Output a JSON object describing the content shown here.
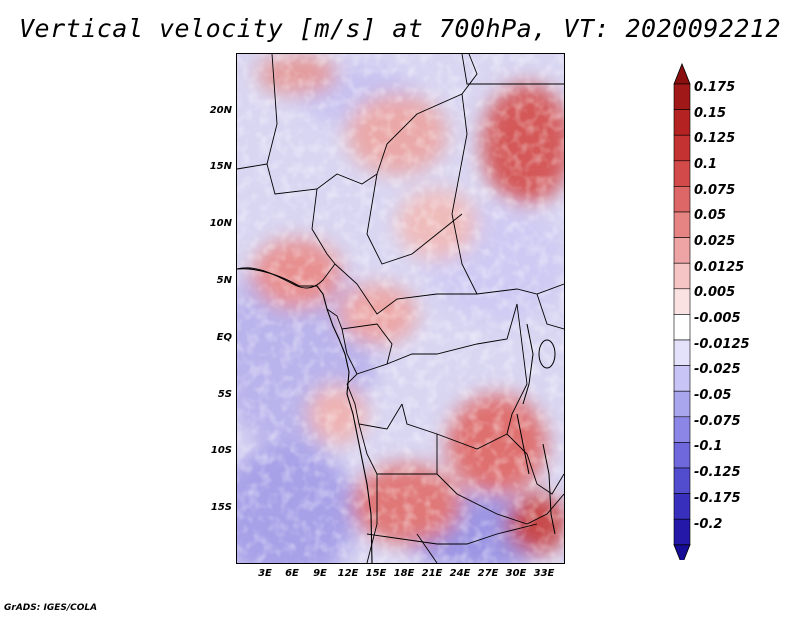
{
  "title": "Vertical velocity [m/s] at 700hPa, VT: 2020092212",
  "credit": "GrADS: IGES/COLA",
  "map": {
    "variable": "vertical velocity",
    "units": "m/s",
    "level": "700hPa",
    "valid_time": "2020092212",
    "lon_range": [
      0,
      35
    ],
    "lat_range": [
      -20,
      25
    ],
    "lat_labels": [
      {
        "lat": 20,
        "text": "20N"
      },
      {
        "lat": 15,
        "text": "15N"
      },
      {
        "lat": 10,
        "text": "10N"
      },
      {
        "lat": 5,
        "text": "5N"
      },
      {
        "lat": 0,
        "text": "EQ"
      },
      {
        "lat": -5,
        "text": "5S"
      },
      {
        "lat": -10,
        "text": "10S"
      },
      {
        "lat": -15,
        "text": "15S"
      }
    ],
    "lon_labels": [
      {
        "lon": 3,
        "text": "3E"
      },
      {
        "lon": 6,
        "text": "6E"
      },
      {
        "lon": 9,
        "text": "9E"
      },
      {
        "lon": 12,
        "text": "12E"
      },
      {
        "lon": 15,
        "text": "15E"
      },
      {
        "lon": 18,
        "text": "18E"
      },
      {
        "lon": 21,
        "text": "21E"
      },
      {
        "lon": 24,
        "text": "24E"
      },
      {
        "lon": 27,
        "text": "27E"
      },
      {
        "lon": 30,
        "text": "30E"
      },
      {
        "lon": 33,
        "text": "33E"
      }
    ]
  },
  "colorbar": {
    "levels": [
      {
        "label": "0.175",
        "color": "#a01818"
      },
      {
        "label": "0.15",
        "color": "#b42222"
      },
      {
        "label": "0.125",
        "color": "#c53232"
      },
      {
        "label": "0.1",
        "color": "#d24a4a"
      },
      {
        "label": "0.075",
        "color": "#dd6666"
      },
      {
        "label": "0.05",
        "color": "#e68484"
      },
      {
        "label": "0.025",
        "color": "#eea4a4"
      },
      {
        "label": "0.0125",
        "color": "#f5c4c4"
      },
      {
        "label": "0.005",
        "color": "#fbe2e2"
      },
      {
        "label": "-0.005",
        "color": "#ffffff"
      },
      {
        "label": "-0.0125",
        "color": "#e4e2fb"
      },
      {
        "label": "-0.025",
        "color": "#c8c4f5"
      },
      {
        "label": "-0.05",
        "color": "#aaa6ee"
      },
      {
        "label": "-0.075",
        "color": "#8c86e6"
      },
      {
        "label": "-0.1",
        "color": "#6e68dc"
      },
      {
        "label": "-0.125",
        "color": "#524cce"
      },
      {
        "label": "-0.175",
        "color": "#3830bc"
      },
      {
        "label": "-0.2",
        "color": "#2418a8"
      }
    ],
    "over_color": "#8a1010",
    "under_color": "#160c96"
  }
}
